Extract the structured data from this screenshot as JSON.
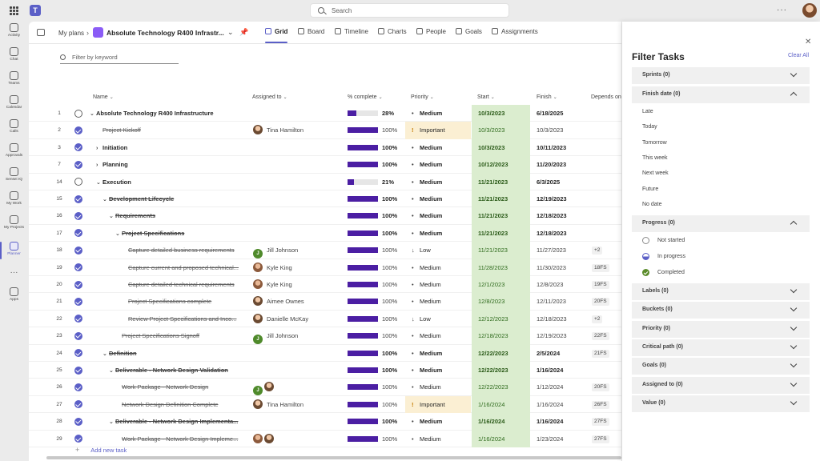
{
  "topbar": {
    "search_placeholder": "Search"
  },
  "rail": [
    {
      "label": "Activity",
      "icon": "bell-icon"
    },
    {
      "label": "Chat",
      "icon": "chat-icon"
    },
    {
      "label": "Teams",
      "icon": "teams-icon"
    },
    {
      "label": "Calendar",
      "icon": "calendar-icon"
    },
    {
      "label": "Calls",
      "icon": "phone-icon"
    },
    {
      "label": "Approvals",
      "icon": "approvals-icon"
    },
    {
      "label": "Sensei IQ",
      "icon": "iq-icon"
    },
    {
      "label": "My Work",
      "icon": "iq-icon"
    },
    {
      "label": "My Projects",
      "icon": "iq-icon"
    },
    {
      "label": "Planner",
      "icon": "planner-icon"
    },
    {
      "label": "Apps",
      "icon": "apps-icon"
    }
  ],
  "header": {
    "breadcrumb": "My plans",
    "plan_title": "Absolute Technology R400 Infrastr...",
    "tabs": [
      "Grid",
      "Board",
      "Timeline",
      "Charts",
      "People",
      "Goals",
      "Assignments"
    ]
  },
  "filter_keyword_placeholder": "Filter by keyword",
  "columns": {
    "name": "Name",
    "assigned": "Assigned to",
    "pct": "% complete",
    "priority": "Priority",
    "start": "Start",
    "finish": "Finish",
    "depends": "Depends on"
  },
  "rows": [
    {
      "num": "1",
      "name": "Absolute Technology R400 Infrastructure",
      "level": 0,
      "expand": "down",
      "bold": true,
      "strike": false,
      "done": false,
      "assignees": [],
      "pct_text": "28%",
      "pct_value": 28,
      "priority": "Medium",
      "priority_mark": "•",
      "start": "10/3/2023",
      "finish": "6/18/2025",
      "depends": ""
    },
    {
      "num": "2",
      "name": "Project Kickoff",
      "level": 1,
      "expand": "",
      "bold": false,
      "strike": true,
      "done": true,
      "assignees": [
        {
          "kind": "photo",
          "name": "Tina Hamilton"
        }
      ],
      "pct_text": "100%",
      "pct_value": 100,
      "priority": "Important",
      "priority_mark": "!",
      "start": "10/3/2023",
      "finish": "10/3/2023",
      "depends": ""
    },
    {
      "num": "3",
      "name": "Initiation",
      "level": 1,
      "expand": "right",
      "bold": true,
      "strike": false,
      "done": true,
      "assignees": [],
      "pct_text": "100%",
      "pct_value": 100,
      "priority": "Medium",
      "priority_mark": "•",
      "start": "10/3/2023",
      "finish": "10/11/2023",
      "depends": ""
    },
    {
      "num": "7",
      "name": "Planning",
      "level": 1,
      "expand": "right",
      "bold": true,
      "strike": false,
      "done": true,
      "assignees": [],
      "pct_text": "100%",
      "pct_value": 100,
      "priority": "Medium",
      "priority_mark": "•",
      "start": "10/12/2023",
      "finish": "11/20/2023",
      "depends": ""
    },
    {
      "num": "14",
      "name": "Execution",
      "level": 1,
      "expand": "down",
      "bold": true,
      "strike": false,
      "done": false,
      "assignees": [],
      "pct_text": "21%",
      "pct_value": 21,
      "priority": "Medium",
      "priority_mark": "•",
      "start": "11/21/2023",
      "finish": "6/3/2025",
      "depends": ""
    },
    {
      "num": "15",
      "name": "Development Lifecycle",
      "level": 2,
      "expand": "down",
      "bold": true,
      "strike": true,
      "done": true,
      "assignees": [],
      "pct_text": "100%",
      "pct_value": 100,
      "priority": "Medium",
      "priority_mark": "•",
      "start": "11/21/2023",
      "finish": "12/19/2023",
      "depends": ""
    },
    {
      "num": "16",
      "name": "Requirements",
      "level": 3,
      "expand": "down",
      "bold": true,
      "strike": true,
      "done": true,
      "assignees": [],
      "pct_text": "100%",
      "pct_value": 100,
      "priority": "Medium",
      "priority_mark": "•",
      "start": "11/21/2023",
      "finish": "12/18/2023",
      "depends": ""
    },
    {
      "num": "17",
      "name": "Project Specifications",
      "level": 4,
      "expand": "down",
      "bold": true,
      "strike": true,
      "done": true,
      "assignees": [],
      "pct_text": "100%",
      "pct_value": 100,
      "priority": "Medium",
      "priority_mark": "•",
      "start": "11/21/2023",
      "finish": "12/18/2023",
      "depends": ""
    },
    {
      "num": "18",
      "name": "Capture detailed business requirements",
      "level": 5,
      "expand": "",
      "bold": false,
      "strike": true,
      "done": true,
      "assignees": [
        {
          "kind": "green",
          "name": "Jill Johnson"
        }
      ],
      "pct_text": "100%",
      "pct_value": 100,
      "priority": "Low",
      "priority_mark": "↓",
      "start": "11/21/2023",
      "finish": "11/27/2023",
      "depends": "+2"
    },
    {
      "num": "19",
      "name": "Capture current and proposed technical...",
      "level": 5,
      "expand": "",
      "bold": false,
      "strike": true,
      "done": true,
      "assignees": [
        {
          "kind": "photo2",
          "name": "Kyle King"
        }
      ],
      "pct_text": "100%",
      "pct_value": 100,
      "priority": "Medium",
      "priority_mark": "•",
      "start": "11/28/2023",
      "finish": "11/30/2023",
      "depends": "18FS"
    },
    {
      "num": "20",
      "name": "Capture detailed technical requirements",
      "level": 5,
      "expand": "",
      "bold": false,
      "strike": true,
      "done": true,
      "assignees": [
        {
          "kind": "photo2",
          "name": "Kyle King"
        }
      ],
      "pct_text": "100%",
      "pct_value": 100,
      "priority": "Medium",
      "priority_mark": "•",
      "start": "12/1/2023",
      "finish": "12/8/2023",
      "depends": "19FS"
    },
    {
      "num": "21",
      "name": "Project Specifications complete",
      "level": 5,
      "expand": "",
      "bold": false,
      "strike": true,
      "done": true,
      "assignees": [
        {
          "kind": "photo",
          "name": "Aimee Ownes"
        }
      ],
      "pct_text": "100%",
      "pct_value": 100,
      "priority": "Medium",
      "priority_mark": "•",
      "start": "12/8/2023",
      "finish": "12/11/2023",
      "depends": "20FS"
    },
    {
      "num": "22",
      "name": "Review Project Specifications and Inco...",
      "level": 5,
      "expand": "",
      "bold": false,
      "strike": true,
      "done": true,
      "assignees": [
        {
          "kind": "photo",
          "name": "Danielle McKay"
        }
      ],
      "pct_text": "100%",
      "pct_value": 100,
      "priority": "Low",
      "priority_mark": "↓",
      "start": "12/12/2023",
      "finish": "12/18/2023",
      "depends": "+2"
    },
    {
      "num": "23",
      "name": "Project Specifications Signoff",
      "level": 4,
      "expand": "",
      "bold": false,
      "strike": true,
      "done": true,
      "assignees": [
        {
          "kind": "green",
          "name": "Jill Johnson"
        }
      ],
      "pct_text": "100%",
      "pct_value": 100,
      "priority": "Medium",
      "priority_mark": "•",
      "start": "12/18/2023",
      "finish": "12/19/2023",
      "depends": "22FS"
    },
    {
      "num": "24",
      "name": "Definition",
      "level": 2,
      "expand": "down",
      "bold": true,
      "strike": true,
      "done": true,
      "assignees": [],
      "pct_text": "100%",
      "pct_value": 100,
      "priority": "Medium",
      "priority_mark": "•",
      "start": "12/22/2023",
      "finish": "2/5/2024",
      "depends": "21FS"
    },
    {
      "num": "25",
      "name": "Deliverable - Network Design Validation",
      "level": 3,
      "expand": "down",
      "bold": true,
      "strike": true,
      "done": true,
      "assignees": [],
      "pct_text": "100%",
      "pct_value": 100,
      "priority": "Medium",
      "priority_mark": "•",
      "start": "12/22/2023",
      "finish": "1/16/2024",
      "depends": ""
    },
    {
      "num": "26",
      "name": "Work Package - Network Design",
      "level": 4,
      "expand": "",
      "bold": false,
      "strike": true,
      "done": true,
      "assignees": [
        {
          "kind": "green",
          "name": ""
        },
        {
          "kind": "photo",
          "name": ""
        }
      ],
      "pct_text": "100%",
      "pct_value": 100,
      "priority": "Medium",
      "priority_mark": "•",
      "start": "12/22/2023",
      "finish": "1/12/2024",
      "depends": "20FS"
    },
    {
      "num": "27",
      "name": "Network Design Definition Complete",
      "level": 4,
      "expand": "",
      "bold": false,
      "strike": true,
      "done": true,
      "assignees": [
        {
          "kind": "photo",
          "name": "Tina Hamilton"
        }
      ],
      "pct_text": "100%",
      "pct_value": 100,
      "priority": "Important",
      "priority_mark": "!",
      "start": "1/16/2024",
      "finish": "1/16/2024",
      "depends": "26FS"
    },
    {
      "num": "28",
      "name": "Deliverable - Network Design Implementa...",
      "level": 3,
      "expand": "down",
      "bold": true,
      "strike": true,
      "done": true,
      "assignees": [],
      "pct_text": "100%",
      "pct_value": 100,
      "priority": "Medium",
      "priority_mark": "•",
      "start": "1/16/2024",
      "finish": "1/16/2024",
      "depends": "27FS"
    },
    {
      "num": "29",
      "name": "Work Package - Network Design Impleme...",
      "level": 4,
      "expand": "",
      "bold": false,
      "strike": true,
      "done": true,
      "assignees": [
        {
          "kind": "photo2",
          "name": ""
        },
        {
          "kind": "photo",
          "name": ""
        }
      ],
      "pct_text": "100%",
      "pct_value": 100,
      "priority": "Medium",
      "priority_mark": "•",
      "start": "1/16/2024",
      "finish": "1/23/2024",
      "depends": "27FS"
    }
  ],
  "add_task": "Add new task",
  "filter_panel": {
    "title": "Filter Tasks",
    "clear_all": "Clear All",
    "sprints": "Sprints (0)",
    "finish_date": "Finish date (0)",
    "finish_options": [
      "Late",
      "Today",
      "Tomorrow",
      "This week",
      "Next week",
      "Future",
      "No date"
    ],
    "progress": "Progress (0)",
    "progress_options": [
      "Not started",
      "In progress",
      "Completed"
    ],
    "collapsed_sections": [
      "Labels (0)",
      "Buckets (0)",
      "Priority (0)",
      "Critical path (0)",
      "Goals (0)",
      "Assigned to (0)",
      "Value (0)"
    ]
  },
  "colors": {
    "accent": "#5b5fc7",
    "progress_bar": "#4b1ea3",
    "start_highlight": "#dbedcf",
    "important_highlight": "#fbefd3"
  }
}
